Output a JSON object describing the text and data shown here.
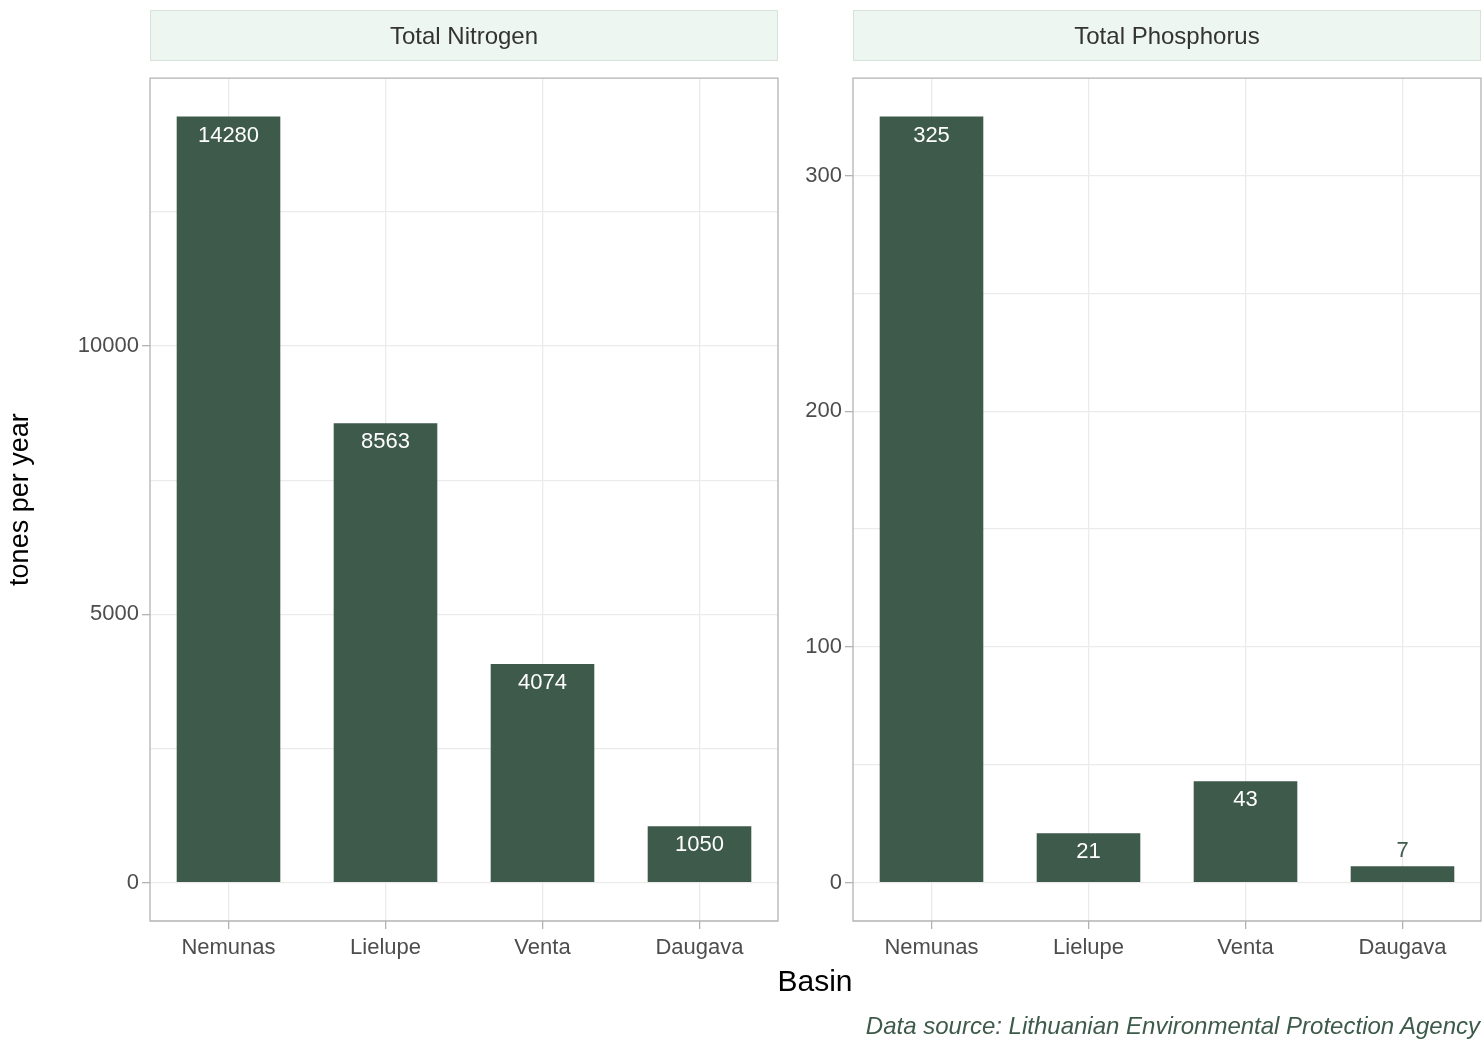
{
  "chart_data": [
    {
      "type": "bar",
      "title": "Total Nitrogen",
      "ylabel": "tones per year",
      "xlabel": "Basin",
      "categories": [
        "Nemunas",
        "Lielupe",
        "Venta",
        "Daugava"
      ],
      "values": [
        14280,
        8563,
        4074,
        1050
      ],
      "color": "#3d5a4a",
      "data_labels": true,
      "ylim": [
        -714,
        14994
      ],
      "yticks": [
        0,
        {
          "value": 2500,
          "label": null
        },
        5000,
        {
          "value": 7500,
          "label": null
        },
        10000,
        {
          "value": 12500,
          "label": null
        }
      ],
      "grid": true,
      "legend": false
    },
    {
      "type": "bar",
      "title": "Total Phosphorus",
      "categories": [
        "Nemunas",
        "Lielupe",
        "Venta",
        "Daugava"
      ],
      "values": [
        325,
        21,
        43,
        7
      ],
      "color": "#3d5a4a",
      "data_labels": true,
      "ylim": [
        -16.25,
        341.25
      ],
      "yticks": [
        0,
        {
          "value": 50,
          "label": null
        },
        100,
        {
          "value": 150,
          "label": null
        },
        200,
        {
          "value": 250,
          "label": null
        },
        300
      ],
      "grid": true,
      "legend": false,
      "annotations": [
        "Data source: Lithuanian Environmental Protection Agency"
      ]
    }
  ]
}
